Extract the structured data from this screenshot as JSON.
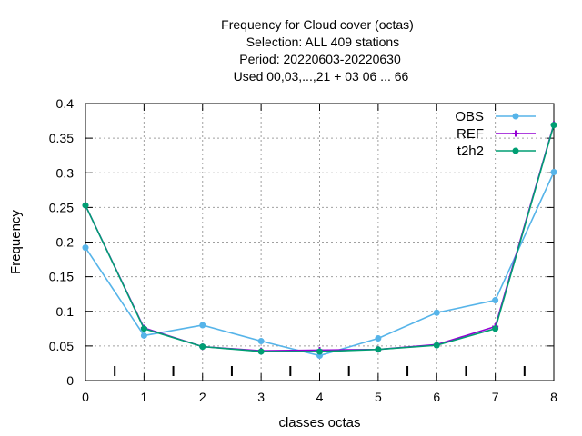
{
  "chart_data": {
    "type": "line",
    "title_lines": [
      "Frequency  for Cloud cover (octas)",
      "Selection: ALL    409 stations",
      "Period: 20220603-20220630",
      "Used  00,03,...,21  + 03 06 ... 66"
    ],
    "xlabel": "classes octas",
    "ylabel": "Frequency",
    "xlim": [
      0,
      8
    ],
    "ylim": [
      0,
      0.4
    ],
    "xticks": [
      "0",
      "1",
      "2",
      "3",
      "4",
      "5",
      "6",
      "7",
      "8"
    ],
    "yticks": [
      "0",
      "0.05",
      "0.1",
      "0.15",
      "0.2",
      "0.25",
      "0.3",
      "0.35",
      "0.4"
    ],
    "grid": true,
    "legend_position": "top-right",
    "x": [
      0,
      1,
      2,
      3,
      4,
      5,
      6,
      7,
      8
    ],
    "series": [
      {
        "name": "OBS",
        "color": "#56b4e9",
        "marker": "circle",
        "values": [
          0.192,
          0.065,
          0.08,
          0.057,
          0.036,
          0.061,
          0.098,
          0.116,
          0.301
        ]
      },
      {
        "name": "REF",
        "color": "#9400d3",
        "marker": "plus",
        "values": [
          0.253,
          0.076,
          0.049,
          0.043,
          0.044,
          0.045,
          0.052,
          0.078,
          0.37
        ]
      },
      {
        "name": "t2h2",
        "color": "#009e73",
        "marker": "circle",
        "values": [
          0.253,
          0.075,
          0.049,
          0.042,
          0.042,
          0.045,
          0.051,
          0.075,
          0.369
        ]
      }
    ]
  }
}
